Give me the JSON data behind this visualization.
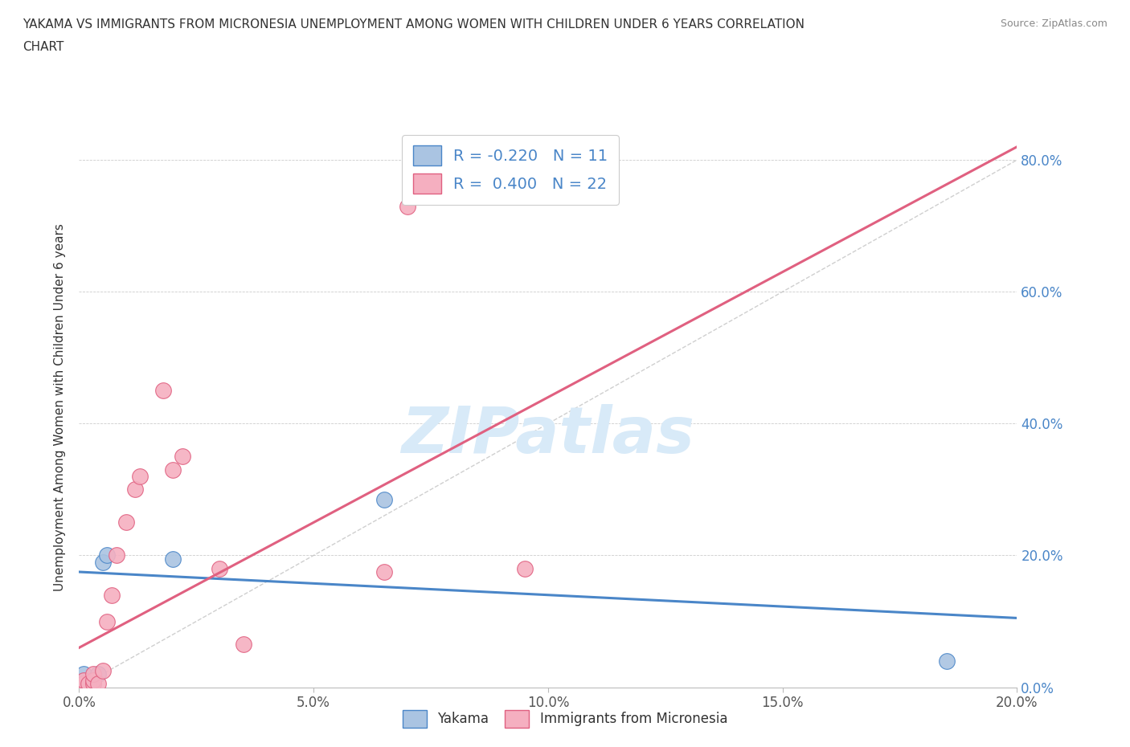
{
  "title_line1": "YAKAMA VS IMMIGRANTS FROM MICRONESIA UNEMPLOYMENT AMONG WOMEN WITH CHILDREN UNDER 6 YEARS CORRELATION",
  "title_line2": "CHART",
  "source_text": "Source: ZipAtlas.com",
  "ylabel": "Unemployment Among Women with Children Under 6 years",
  "xlim": [
    0.0,
    0.2
  ],
  "ylim": [
    0.0,
    0.85
  ],
  "ytick_labels": [
    "0.0%",
    "20.0%",
    "40.0%",
    "60.0%",
    "80.0%"
  ],
  "ytick_values": [
    0.0,
    0.2,
    0.4,
    0.6,
    0.8
  ],
  "xtick_labels": [
    "0.0%",
    "5.0%",
    "10.0%",
    "15.0%",
    "20.0%"
  ],
  "xtick_values": [
    0.0,
    0.05,
    0.1,
    0.15,
    0.2
  ],
  "yakama_color": "#aac4e2",
  "micronesia_color": "#f5afc0",
  "trendline_yakama_color": "#4a86c8",
  "trendline_micronesia_color": "#e06080",
  "diagonal_color": "#bbbbbb",
  "watermark_color": "#d8eaf8",
  "watermark": "ZIPatlas",
  "legend_r_yakama": "-0.220",
  "legend_n_yakama": "11",
  "legend_r_micronesia": "0.400",
  "legend_n_micronesia": "22",
  "yakama_points": [
    [
      0.001,
      0.01
    ],
    [
      0.001,
      0.02
    ],
    [
      0.002,
      0.005
    ],
    [
      0.003,
      0.005
    ],
    [
      0.003,
      0.01
    ],
    [
      0.004,
      0.02
    ],
    [
      0.005,
      0.19
    ],
    [
      0.006,
      0.2
    ],
    [
      0.02,
      0.195
    ],
    [
      0.065,
      0.285
    ],
    [
      0.185,
      0.04
    ]
  ],
  "micronesia_points": [
    [
      0.001,
      0.005
    ],
    [
      0.001,
      0.01
    ],
    [
      0.002,
      0.005
    ],
    [
      0.003,
      0.005
    ],
    [
      0.003,
      0.01
    ],
    [
      0.003,
      0.02
    ],
    [
      0.004,
      0.005
    ],
    [
      0.005,
      0.025
    ],
    [
      0.006,
      0.1
    ],
    [
      0.007,
      0.14
    ],
    [
      0.008,
      0.2
    ],
    [
      0.01,
      0.25
    ],
    [
      0.012,
      0.3
    ],
    [
      0.013,
      0.32
    ],
    [
      0.018,
      0.45
    ],
    [
      0.02,
      0.33
    ],
    [
      0.022,
      0.35
    ],
    [
      0.03,
      0.18
    ],
    [
      0.035,
      0.065
    ],
    [
      0.065,
      0.175
    ],
    [
      0.07,
      0.73
    ],
    [
      0.095,
      0.18
    ]
  ],
  "trendline_yakama_slope": -0.35,
  "trendline_yakama_intercept": 0.175,
  "trendline_micronesia_slope": 3.8,
  "trendline_micronesia_intercept": 0.06
}
